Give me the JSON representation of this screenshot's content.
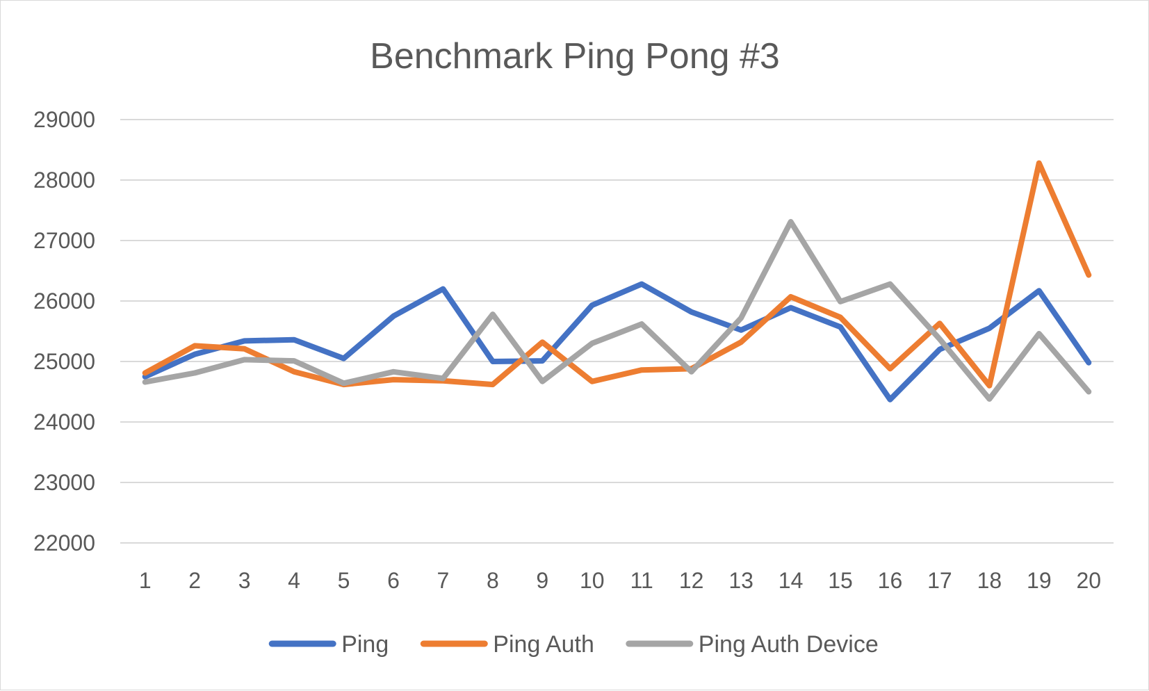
{
  "chart_data": {
    "type": "line",
    "title": "Benchmark Ping Pong #3",
    "xlabel": "",
    "ylabel": "",
    "ylim": [
      22000,
      29000
    ],
    "yticks": [
      22000,
      23000,
      24000,
      25000,
      26000,
      27000,
      28000,
      29000
    ],
    "categories": [
      "1",
      "2",
      "3",
      "4",
      "5",
      "6",
      "7",
      "8",
      "9",
      "10",
      "11",
      "12",
      "13",
      "14",
      "15",
      "16",
      "17",
      "18",
      "19",
      "20"
    ],
    "grid": true,
    "legend": "bottom",
    "series": [
      {
        "name": "Ping",
        "color": "#4472c4",
        "values": [
          24750,
          25120,
          25340,
          25360,
          25050,
          25750,
          26200,
          25000,
          25010,
          25930,
          26280,
          25820,
          25520,
          25890,
          25570,
          24370,
          25200,
          25550,
          26170,
          24980
        ]
      },
      {
        "name": "Ping Auth",
        "color": "#ed7d31",
        "values": [
          24810,
          25260,
          25210,
          24830,
          24620,
          24700,
          24680,
          24620,
          25320,
          24670,
          24860,
          24880,
          25320,
          26070,
          25730,
          24880,
          25630,
          24600,
          28280,
          26430
        ]
      },
      {
        "name": "Ping Auth Device",
        "color": "#a5a5a5",
        "values": [
          24660,
          24810,
          25030,
          25010,
          24640,
          24830,
          24720,
          25780,
          24670,
          25300,
          25620,
          24830,
          25720,
          27310,
          25990,
          26280,
          25370,
          24380,
          25460,
          24500
        ]
      }
    ]
  }
}
